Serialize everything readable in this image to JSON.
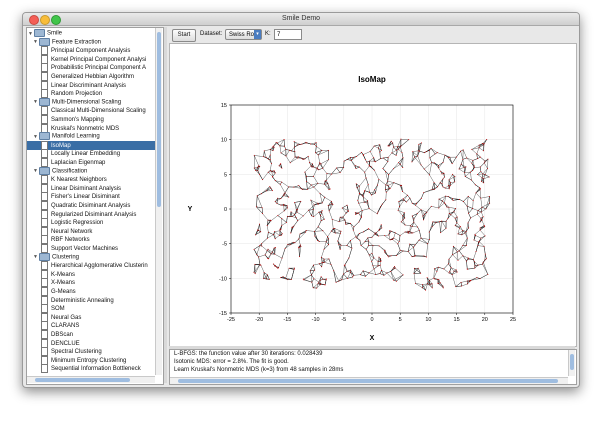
{
  "window": {
    "title": "Smile Demo"
  },
  "sidebar": {
    "root": "Smile",
    "rows": [
      {
        "label": "Smile",
        "level": 0,
        "kind": "folder"
      },
      {
        "label": "Feature Extraction",
        "level": 1,
        "kind": "folder"
      },
      {
        "label": "Principal Component Analysis",
        "level": 2,
        "kind": "leaf"
      },
      {
        "label": "Kernel Principal Component Analysi",
        "level": 2,
        "kind": "leaf"
      },
      {
        "label": "Probabilistic Principal Component A",
        "level": 2,
        "kind": "leaf"
      },
      {
        "label": "Generalized Hebbian Algorithm",
        "level": 2,
        "kind": "leaf"
      },
      {
        "label": "Linear Discriminant Analysis",
        "level": 2,
        "kind": "leaf"
      },
      {
        "label": "Random Projection",
        "level": 2,
        "kind": "leaf"
      },
      {
        "label": "Multi-Dimensional Scaling",
        "level": 1,
        "kind": "folder"
      },
      {
        "label": "Classical Multi-Dimensional Scaling",
        "level": 2,
        "kind": "leaf"
      },
      {
        "label": "Sammon's Mapping",
        "level": 2,
        "kind": "leaf"
      },
      {
        "label": "Kruskal's Nonmetric MDS",
        "level": 2,
        "kind": "leaf"
      },
      {
        "label": "Manifold Learning",
        "level": 1,
        "kind": "folder"
      },
      {
        "label": "IsoMap",
        "level": 2,
        "kind": "leaf",
        "selected": true
      },
      {
        "label": "Locally Linear Embedding",
        "level": 2,
        "kind": "leaf"
      },
      {
        "label": "Laplacian Eigenmap",
        "level": 2,
        "kind": "leaf"
      },
      {
        "label": "Classification",
        "level": 1,
        "kind": "folder"
      },
      {
        "label": "K Nearest Neighbors",
        "level": 2,
        "kind": "leaf"
      },
      {
        "label": "Linear Disiminant Analysis",
        "level": 2,
        "kind": "leaf"
      },
      {
        "label": "Fisher's Linear Disiminant",
        "level": 2,
        "kind": "leaf"
      },
      {
        "label": "Quadratic Disiminant Analysis",
        "level": 2,
        "kind": "leaf"
      },
      {
        "label": "Regularized Disiminant Analysis",
        "level": 2,
        "kind": "leaf"
      },
      {
        "label": "Logistic Regression",
        "level": 2,
        "kind": "leaf"
      },
      {
        "label": "Neural Network",
        "level": 2,
        "kind": "leaf"
      },
      {
        "label": "RBF Networks",
        "level": 2,
        "kind": "leaf"
      },
      {
        "label": "Support Vector Machines",
        "level": 2,
        "kind": "leaf"
      },
      {
        "label": "Clustering",
        "level": 1,
        "kind": "folder"
      },
      {
        "label": "Hierarchical Agglomerative Clusterin",
        "level": 2,
        "kind": "leaf"
      },
      {
        "label": "K-Means",
        "level": 2,
        "kind": "leaf"
      },
      {
        "label": "X-Means",
        "level": 2,
        "kind": "leaf"
      },
      {
        "label": "G-Means",
        "level": 2,
        "kind": "leaf"
      },
      {
        "label": "Deterministic Annealing",
        "level": 2,
        "kind": "leaf"
      },
      {
        "label": "SOM",
        "level": 2,
        "kind": "leaf"
      },
      {
        "label": "Neural Gas",
        "level": 2,
        "kind": "leaf"
      },
      {
        "label": "CLARANS",
        "level": 2,
        "kind": "leaf"
      },
      {
        "label": "DBScan",
        "level": 2,
        "kind": "leaf"
      },
      {
        "label": "DENCLUE",
        "level": 2,
        "kind": "leaf"
      },
      {
        "label": "Spectral Clustering",
        "level": 2,
        "kind": "leaf"
      },
      {
        "label": "Minimum Entropy Clustering",
        "level": 2,
        "kind": "leaf"
      },
      {
        "label": "Sequential Information Bottleneck",
        "level": 2,
        "kind": "leaf"
      }
    ]
  },
  "toolbar": {
    "start_label": "Start",
    "dataset_label": "Dataset:",
    "dataset_value": "Swiss Roll",
    "k_label": "K:",
    "k_value": "7"
  },
  "chart_data": {
    "type": "graph-embedding",
    "title": "IsoMap",
    "xlabel": "X",
    "ylabel": "Y",
    "xlim": [
      -25,
      25
    ],
    "ylim": [
      -15,
      15
    ],
    "x_ticks": [
      "-25",
      "-20",
      "-15",
      "-10",
      "-5",
      "0",
      "5",
      "10",
      "15",
      "20",
      "25"
    ],
    "y_ticks": [
      "15",
      "10",
      "5",
      "0",
      "-5",
      "-10",
      "-15"
    ],
    "point_color": "#cc0000",
    "edge_color": "#111111",
    "grid": true
  },
  "log": {
    "lines": [
      "L-BFGS: the function value after  30 iterations: 0.028439",
      "Isotonic MDS: error = 2.8%. The fit is good.",
      "Learn Kruskal's Nonmetric MDS (k=3) from 48 samples in 28ms"
    ]
  }
}
